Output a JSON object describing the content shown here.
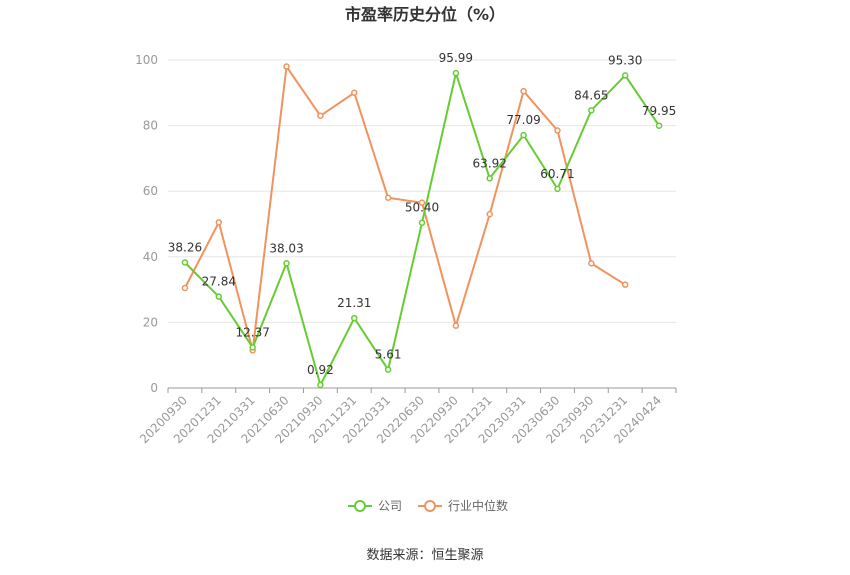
{
  "chart_data": {
    "type": "line",
    "title": "市盈率历史分位（%）",
    "source": "数据来源：恒生聚源",
    "x": [
      "20200930",
      "20201231",
      "20210331",
      "20210630",
      "20210930",
      "20211231",
      "20220331",
      "20220630",
      "20220930",
      "20221231",
      "20230331",
      "20230630",
      "20230930",
      "20231231",
      "20240424"
    ],
    "ylim": [
      0,
      100
    ],
    "yticks": [
      0,
      20,
      40,
      60,
      80,
      100
    ],
    "grid": true,
    "legend_position": "bottom-center",
    "series": [
      {
        "name": "公司",
        "color": "#66cc33",
        "values": [
          38.26,
          27.84,
          12.37,
          38.03,
          0.92,
          21.31,
          5.61,
          50.4,
          95.99,
          63.92,
          77.09,
          60.71,
          84.65,
          95.3,
          79.95
        ],
        "labels": [
          "38.26",
          "27.84",
          "12.37",
          "38.03",
          "0.92",
          "21.31",
          "5.61",
          "50.40",
          "95.99",
          "63.92",
          "77.09",
          "60.71",
          "84.65",
          "95.30",
          "79.95"
        ]
      },
      {
        "name": "行业中位数",
        "color": "#f0935e",
        "values": [
          30.5,
          50.5,
          11.5,
          98.0,
          83.0,
          90.0,
          58.0,
          56.5,
          19.0,
          53.0,
          90.5,
          78.5,
          38.0,
          31.5,
          null
        ]
      }
    ]
  }
}
